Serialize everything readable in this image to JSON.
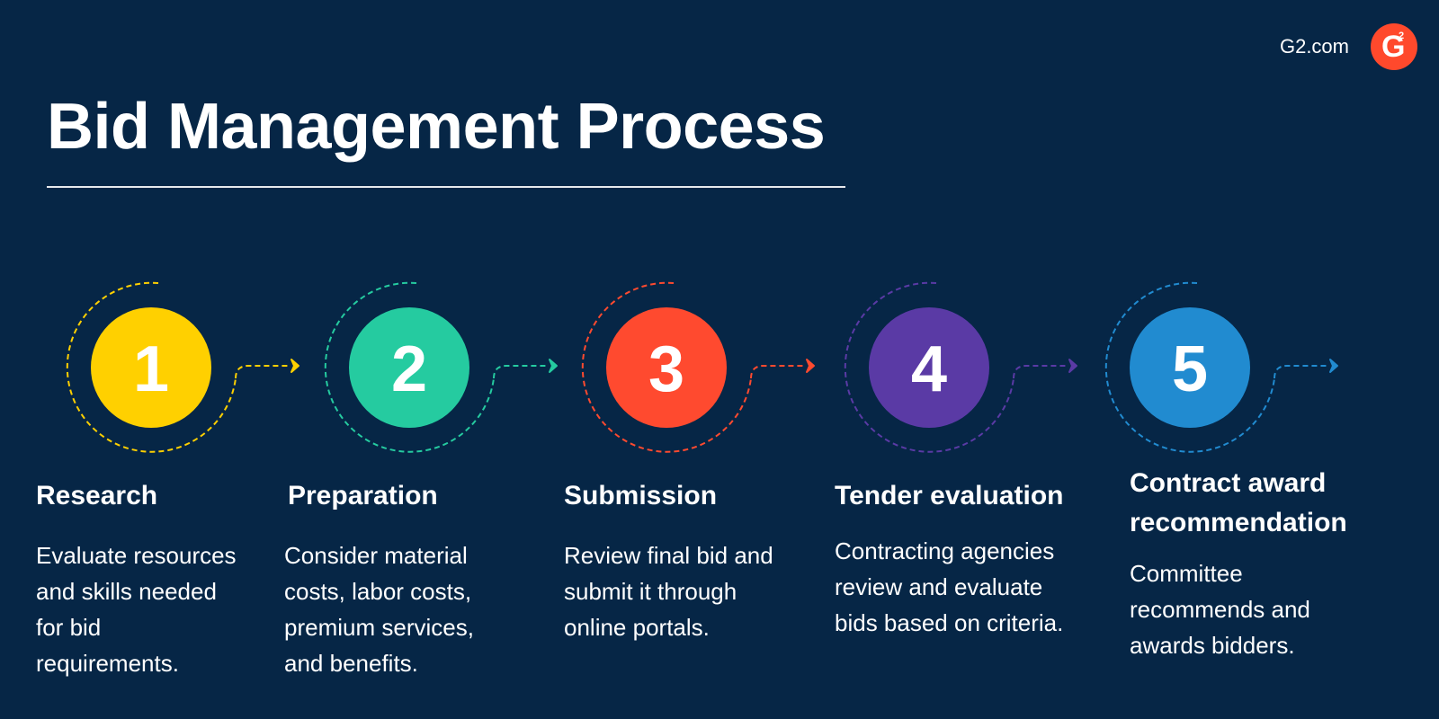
{
  "brand": {
    "site": "G2.com",
    "logo_letter": "G",
    "logo_superscript": "2",
    "color": "#ff492c"
  },
  "title": "Bid Management Process",
  "steps": [
    {
      "number": "1",
      "color": "#ffd000",
      "title": "Research",
      "description": "Evaluate resources and skills needed for bid requirements."
    },
    {
      "number": "2",
      "color": "#25cba0",
      "title": "Preparation",
      "description": "Consider material costs, labor costs, premium services, and benefits."
    },
    {
      "number": "3",
      "color": "#ff4a2f",
      "title": "Submission",
      "description": "Review final bid and submit it through online portals."
    },
    {
      "number": "4",
      "color": "#5a3aa5",
      "title": "Tender evaluation",
      "description": "Contracting agencies review and evaluate bids based on criteria."
    },
    {
      "number": "5",
      "color": "#218bd0",
      "title": "Contract award recommendation",
      "description": "Committee recommends and awards bidders."
    }
  ]
}
